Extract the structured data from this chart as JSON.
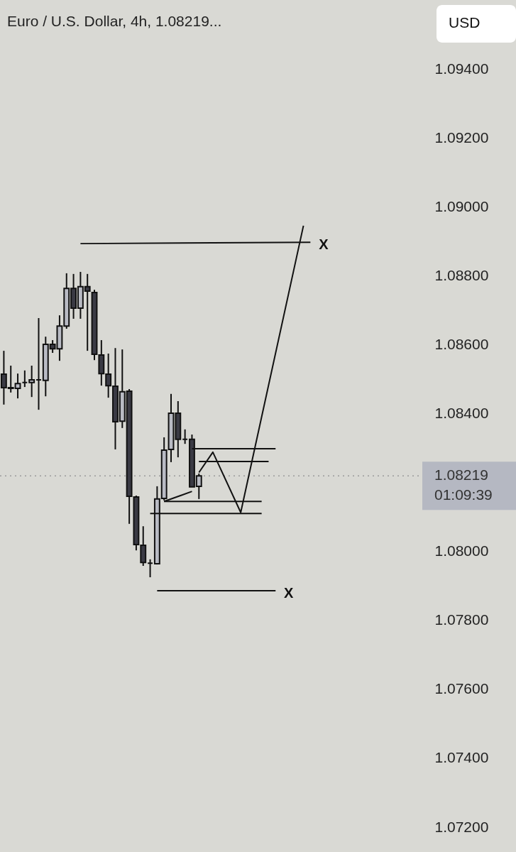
{
  "chart_data": {
    "type": "candlestick",
    "title": "Euro / U.S. Dollar, 4h, 1.08219...",
    "categories": [
      null,
      null,
      null,
      null,
      null,
      null,
      null,
      null,
      null,
      null,
      null,
      null,
      null,
      null,
      null,
      null,
      null,
      null,
      null,
      null,
      null,
      null,
      null,
      null,
      null,
      null,
      null,
      null,
      null,
      null,
      null,
      null,
      null,
      null,
      null,
      null,
      null,
      null,
      null,
      null,
      null,
      null,
      null,
      null,
      null,
      null,
      null,
      null,
      null,
      null,
      null,
      null,
      null,
      null,
      null,
      null,
      null,
      null,
      null,
      null
    ],
    "ohlc": [
      [
        1.08514,
        1.08582,
        1.08426,
        1.08475
      ],
      [
        1.08475,
        1.08539,
        1.08461,
        1.08473
      ],
      [
        1.08473,
        1.08516,
        1.08444,
        1.08487
      ],
      [
        1.0849,
        1.08525,
        1.08477,
        1.0849
      ],
      [
        1.0849,
        1.08539,
        1.08448,
        1.08498
      ],
      [
        1.08498,
        1.08677,
        1.08411,
        1.08498
      ],
      [
        1.08496,
        1.08623,
        1.0845,
        1.08601
      ],
      [
        1.08601,
        1.08613,
        1.08576,
        1.08588
      ],
      [
        1.08588,
        1.08685,
        1.08553,
        1.08654
      ],
      [
        1.08654,
        1.08807,
        1.08646,
        1.08763
      ],
      [
        1.08763,
        1.08805,
        1.08675,
        1.08706
      ],
      [
        1.08706,
        1.08811,
        1.08675,
        1.08768
      ],
      [
        1.08768,
        1.08805,
        1.08582,
        1.08755
      ],
      [
        1.08751,
        1.08759,
        1.08555,
        1.08572
      ],
      [
        1.0857,
        1.08613,
        1.08481,
        1.08516
      ],
      [
        1.08514,
        1.08574,
        1.08446,
        1.08481
      ],
      [
        1.08479,
        1.0859,
        1.08296,
        1.08376
      ],
      [
        1.08378,
        1.08586,
        1.08358,
        1.08463
      ],
      [
        1.08465,
        1.08471,
        1.0808,
        1.0816
      ],
      [
        1.08158,
        1.08162,
        1.08003,
        1.0802
      ],
      [
        1.08018,
        1.08073,
        1.07958,
        1.07968
      ],
      [
        1.07966,
        1.07977,
        1.07925,
        1.07966
      ],
      [
        1.07964,
        1.08189,
        1.07962,
        1.08152
      ],
      [
        1.08154,
        1.08331,
        1.08148,
        1.08294
      ],
      [
        1.08296,
        1.08457,
        1.08259,
        1.08401
      ],
      [
        1.08401,
        1.08436,
        1.08273,
        1.08325
      ],
      [
        1.08325,
        1.08354,
        1.08312,
        1.08325
      ],
      [
        1.08325,
        1.08339,
        1.08187,
        1.08187
      ],
      [
        1.08189,
        1.08226,
        1.08152,
        1.08219
      ],
      null,
      null,
      null,
      null,
      null,
      null,
      null,
      null,
      null,
      null,
      null,
      null,
      null,
      null,
      null,
      null,
      null,
      null,
      null,
      null,
      null,
      null,
      null,
      null,
      null,
      null,
      null,
      null,
      null,
      null,
      null
    ],
    "colors": [
      "#3a3a44",
      "#3a3a44",
      "#b9bbc4",
      "#111111",
      "#b9bbc4",
      "#111111",
      "#b9bbc4",
      "#3a3a44",
      "#b9bbc4",
      "#b9bbc4",
      "#3a3a44",
      "#b9bbc4",
      "#3a3a44",
      "#3a3a44",
      "#3a3a44",
      "#3a3a44",
      "#3a3a44",
      "#b9bbc4",
      "#3a3a44",
      "#3a3a44",
      "#3a3a44",
      "#111111",
      "#b9bbc4",
      "#b9bbc4",
      "#b9bbc4",
      "#3a3a44",
      "#111111",
      "#3a3a44",
      "#b9bbc4",
      null,
      null,
      null,
      null,
      null,
      null,
      null,
      null,
      null,
      null,
      null,
      null,
      null,
      null,
      null,
      null,
      null,
      null,
      null,
      null,
      null,
      null,
      null,
      null,
      null,
      null,
      null,
      null,
      null,
      null,
      null
    ],
    "series": [
      {
        "type": "line",
        "name": "X",
        "color": "#111111",
        "values": [
          null,
          null,
          null,
          null,
          null,
          null,
          null,
          null,
          null,
          null,
          null,
          1.08893,
          null,
          null,
          null,
          null,
          null,
          null,
          null,
          null,
          null,
          null,
          null,
          null,
          null,
          null,
          null,
          null,
          null,
          null,
          null,
          null,
          null,
          null,
          null,
          null,
          null,
          null,
          null,
          null,
          null,
          null,
          null,
          null,
          1.08897,
          null,
          null,
          null,
          null,
          null,
          null,
          null,
          null,
          null,
          null,
          null,
          null,
          null,
          null,
          null
        ]
      },
      {
        "type": "line",
        "color": "#111111",
        "values": [
          null,
          null,
          null,
          null,
          null,
          null,
          null,
          null,
          null,
          null,
          null,
          null,
          null,
          null,
          null,
          null,
          null,
          null,
          null,
          null,
          null,
          null,
          null,
          null,
          null,
          null,
          null,
          1.08298,
          null,
          null,
          null,
          null,
          null,
          null,
          null,
          null,
          null,
          null,
          null,
          1.08298,
          null,
          null,
          null,
          null,
          null,
          null,
          null,
          null,
          null,
          null,
          null,
          null,
          null,
          null,
          null,
          null,
          null,
          null,
          null,
          null
        ]
      },
      {
        "type": "line",
        "color": "#111111",
        "values": [
          null,
          null,
          null,
          null,
          null,
          null,
          null,
          null,
          null,
          null,
          null,
          null,
          null,
          null,
          null,
          null,
          null,
          null,
          null,
          null,
          null,
          null,
          null,
          null,
          null,
          null,
          null,
          null,
          1.08261,
          null,
          null,
          null,
          null,
          null,
          null,
          null,
          null,
          null,
          1.08261,
          null,
          null,
          null,
          null,
          null,
          null,
          null,
          null,
          null,
          null,
          null,
          null,
          null,
          null,
          null,
          null,
          null,
          null,
          null,
          null,
          null
        ]
      },
      {
        "type": "line",
        "color": "#111111",
        "values": [
          null,
          null,
          null,
          null,
          null,
          null,
          null,
          null,
          null,
          null,
          null,
          null,
          null,
          null,
          null,
          null,
          null,
          null,
          null,
          null,
          null,
          null,
          null,
          null,
          null,
          null,
          null,
          null,
          1.08229,
          null,
          1.08288,
          null,
          null,
          null,
          1.08113,
          null,
          null,
          null,
          null,
          null,
          null,
          null,
          null,
          1.08945,
          null,
          null,
          null,
          null,
          null,
          null,
          null,
          null,
          null,
          null,
          null,
          null,
          null,
          null,
          null,
          null
        ]
      },
      {
        "type": "line",
        "color": "#111111",
        "values": [
          null,
          null,
          null,
          null,
          null,
          null,
          null,
          null,
          null,
          null,
          null,
          null,
          null,
          null,
          null,
          null,
          null,
          null,
          null,
          null,
          null,
          null,
          null,
          1.08145,
          null,
          null,
          null,
          1.08174,
          null,
          null,
          null,
          null,
          null,
          null,
          null,
          null,
          null,
          null,
          null,
          null,
          null,
          null,
          null,
          null,
          null,
          null,
          null,
          null,
          null,
          null,
          null,
          null,
          null,
          null,
          null,
          null,
          null,
          null,
          null,
          null
        ]
      },
      {
        "type": "line",
        "color": "#111111",
        "values": [
          null,
          null,
          null,
          null,
          null,
          null,
          null,
          null,
          null,
          null,
          null,
          null,
          null,
          null,
          null,
          null,
          null,
          null,
          null,
          null,
          null,
          null,
          null,
          1.08145,
          null,
          null,
          null,
          null,
          null,
          null,
          null,
          null,
          null,
          null,
          null,
          null,
          null,
          1.08145,
          null,
          null,
          null,
          null,
          null,
          null,
          null,
          null,
          null,
          null,
          null,
          null,
          null,
          null,
          null,
          null,
          null,
          null,
          null,
          null,
          null,
          null
        ]
      },
      {
        "type": "line",
        "color": "#111111",
        "values": [
          null,
          null,
          null,
          null,
          null,
          null,
          null,
          null,
          null,
          null,
          null,
          null,
          null,
          null,
          null,
          null,
          null,
          null,
          null,
          null,
          null,
          1.0811,
          null,
          null,
          null,
          null,
          null,
          null,
          null,
          null,
          null,
          null,
          null,
          null,
          null,
          null,
          null,
          1.0811,
          null,
          null,
          null,
          null,
          null,
          null,
          null,
          null,
          null,
          null,
          null,
          null,
          null,
          null,
          null,
          null,
          null,
          null,
          null,
          null,
          null,
          null
        ]
      },
      {
        "type": "line",
        "name": "X",
        "color": "#111111",
        "values": [
          null,
          null,
          null,
          null,
          null,
          null,
          null,
          null,
          null,
          null,
          null,
          null,
          null,
          null,
          null,
          null,
          null,
          null,
          null,
          null,
          null,
          null,
          1.07886,
          null,
          null,
          null,
          null,
          null,
          null,
          null,
          null,
          null,
          null,
          null,
          null,
          null,
          null,
          null,
          null,
          1.07886,
          null,
          null,
          null,
          null,
          null,
          null,
          null,
          null,
          null,
          null,
          null,
          null,
          null,
          null,
          null,
          null,
          null,
          null,
          null,
          null
        ]
      }
    ],
    "ylim": [
      1.072,
      1.094
    ],
    "yticks": [
      {
        "value": 1.072,
        "label": "1.07200"
      },
      {
        "value": 1.074,
        "label": "1.07400"
      },
      {
        "value": 1.076,
        "label": "1.07600"
      },
      {
        "value": 1.078,
        "label": "1.07800"
      },
      {
        "value": 1.08,
        "label": "1.08000"
      },
      {
        "value": 1.084,
        "label": "1.08400"
      },
      {
        "value": 1.086,
        "label": "1.08600"
      },
      {
        "value": 1.088,
        "label": "1.08800"
      },
      {
        "value": 1.09,
        "label": "1.09000"
      },
      {
        "value": 1.092,
        "label": "1.09200"
      },
      {
        "value": 1.094,
        "label": "1.09400"
      }
    ],
    "ref_lines": [
      {
        "axis": "y",
        "value": 1.08219,
        "label": "1.08219\n01:09:39",
        "color": "#9a9a9a",
        "line_style": "dotted"
      }
    ],
    "annotations": [
      "USD"
    ],
    "tick_labels": "y",
    "grid": false,
    "legend": false
  }
}
